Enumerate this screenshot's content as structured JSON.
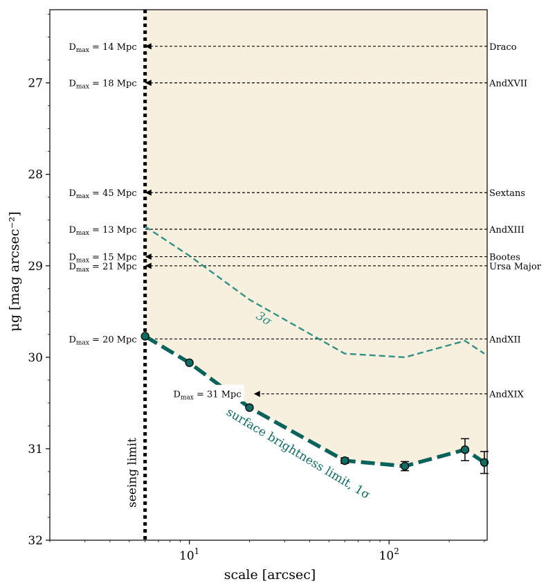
{
  "colors": {
    "shade": "#f8f0df",
    "sb1": "#0a635b",
    "sb3": "#2f9186",
    "marker_face": "#0f6d64",
    "arrow": "#000000"
  },
  "chart_data": {
    "type": "line",
    "xscale": "log",
    "xlim": [
      2.0,
      310
    ],
    "ylim": [
      32,
      26.2
    ],
    "xlabel": "scale [arcsec]",
    "ylabel": "μg [mag arcsec⁻²]",
    "yticks": [
      27,
      28,
      29,
      30,
      31,
      32
    ],
    "xticks": [
      {
        "value": 10,
        "label": "10¹"
      },
      {
        "value": 100,
        "label": "10²"
      }
    ],
    "seeing_limit": {
      "x": 6,
      "label": "seeing limit"
    },
    "sb_1sigma": {
      "label": "surface brightness limit, 1σ",
      "x": [
        6,
        10,
        20,
        60,
        120,
        240,
        300
      ],
      "y": [
        29.77,
        30.06,
        30.55,
        31.13,
        31.19,
        31.01,
        31.15
      ],
      "yerr": [
        0,
        0,
        0,
        0.03,
        0.05,
        0.12,
        0.12
      ]
    },
    "sb_3sigma": {
      "label": "3σ",
      "x": [
        6,
        10,
        20,
        60,
        120,
        240,
        300
      ],
      "y": [
        28.57,
        28.89,
        29.37,
        29.96,
        30.0,
        29.82,
        29.96
      ]
    },
    "galaxies": [
      {
        "name": "Draco",
        "mu": 26.6,
        "dmax": "14",
        "arrow_to": 6
      },
      {
        "name": "AndXVII",
        "mu": 27.0,
        "dmax": "18",
        "arrow_to": 6
      },
      {
        "name": "Sextans",
        "mu": 28.2,
        "dmax": "45",
        "arrow_to": 6
      },
      {
        "name": "AndXIII",
        "mu": 28.6,
        "dmax": "13",
        "arrow_to": null
      },
      {
        "name": "Bootes",
        "mu": 28.9,
        "dmax": "15",
        "arrow_to": 6
      },
      {
        "name": "Ursa Major",
        "mu": 29.0,
        "dmax": "21",
        "arrow_to": 6
      },
      {
        "name": "AndXII",
        "mu": 29.8,
        "dmax": "20",
        "arrow_to": null
      },
      {
        "name": "AndXIX",
        "mu": 30.4,
        "dmax": "31",
        "arrow_to": 21
      }
    ],
    "dmax_prefix": "D",
    "dmax_sub": "max",
    "dmax_unit": " Mpc"
  }
}
